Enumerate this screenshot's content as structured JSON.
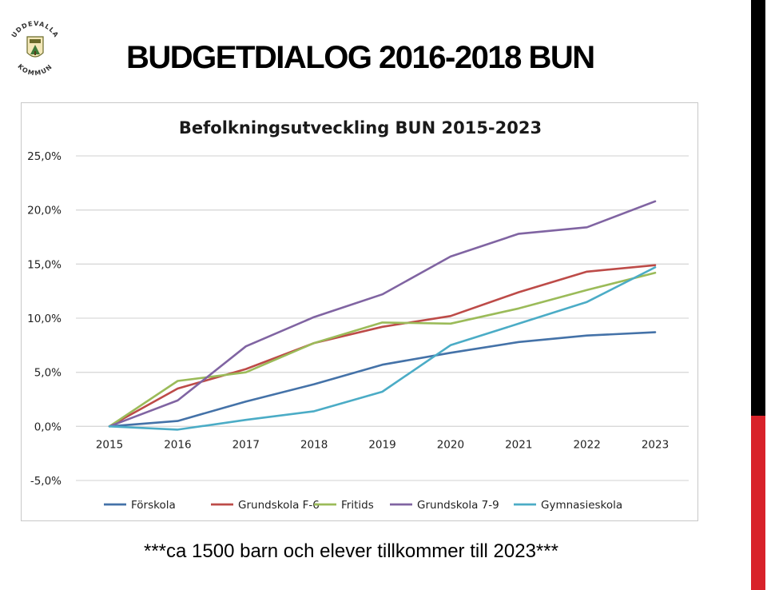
{
  "header": {
    "title": "BUDGETDIALOG 2016-2018 BUN",
    "logo": {
      "name": "uddevalla-kommun-logo",
      "text_top": "UDDEVALLA",
      "text_bottom": "KOMMUN"
    }
  },
  "caption": "***ca 1500 barn och elever tillkommer till 2023***",
  "colors": {
    "accent_black": "#000000",
    "accent_red": "#d8222a"
  },
  "chart_data": {
    "type": "line",
    "title": "Befolkningsutveckling BUN 2015-2023",
    "xlabel": "",
    "ylabel": "",
    "x": [
      "2015",
      "2016",
      "2017",
      "2018",
      "2019",
      "2020",
      "2021",
      "2022",
      "2023"
    ],
    "yticks": [
      "-5,0%",
      "0,0%",
      "5,0%",
      "10,0%",
      "15,0%",
      "20,0%",
      "25,0%"
    ],
    "ylim": [
      -5,
      25
    ],
    "grid": true,
    "legend": "bottom",
    "series": [
      {
        "name": "Förskola",
        "color": "#4472a8",
        "values": [
          0,
          0.5,
          2.3,
          3.9,
          5.7,
          6.8,
          7.8,
          8.4,
          8.7
        ]
      },
      {
        "name": "Grundskola F-6",
        "color": "#bd4b48",
        "values": [
          0,
          3.5,
          5.3,
          7.7,
          9.2,
          10.2,
          12.4,
          14.3,
          14.9
        ]
      },
      {
        "name": "Fritids",
        "color": "#9bbb59",
        "values": [
          0,
          4.2,
          5.0,
          7.7,
          9.6,
          9.5,
          10.9,
          12.6,
          14.2
        ]
      },
      {
        "name": "Grundskola 7-9",
        "color": "#8064a2",
        "values": [
          0,
          2.4,
          7.4,
          10.1,
          12.2,
          15.7,
          17.8,
          18.4,
          20.8
        ]
      },
      {
        "name": "Gymnasieskola",
        "color": "#4bacc6",
        "values": [
          0,
          -0.3,
          0.6,
          1.4,
          3.2,
          7.5,
          9.5,
          11.5,
          14.7
        ]
      }
    ]
  }
}
